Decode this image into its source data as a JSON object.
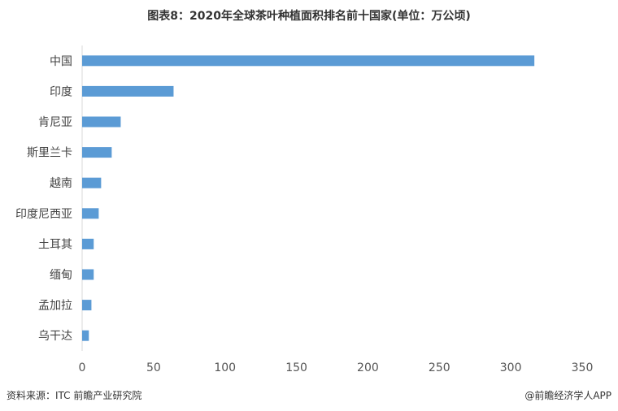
{
  "chart_data": {
    "type": "bar",
    "orientation": "horizontal",
    "title": "图表8：2020年全球茶叶种植面积排名前十国家(单位：万公顷)",
    "categories": [
      "中国",
      "印度",
      "肯尼亚",
      "斯里兰卡",
      "越南",
      "印度尼西亚",
      "土耳其",
      "缅甸",
      "孟加拉",
      "乌干达"
    ],
    "values": [
      316.5,
      64,
      27,
      20.7,
      13.3,
      11.6,
      8.1,
      8.1,
      6.5,
      4.7
    ],
    "xlim": [
      0,
      350
    ],
    "xticks": [
      0,
      50,
      100,
      150,
      200,
      250,
      300,
      350
    ],
    "grid": false,
    "bar_color": "#5b9bd5"
  },
  "footer": {
    "source": "资料来源：ITC 前瞻产业研究院",
    "brand": "@前瞻经济学人APP"
  },
  "watermark": "前瞻产业研究院"
}
